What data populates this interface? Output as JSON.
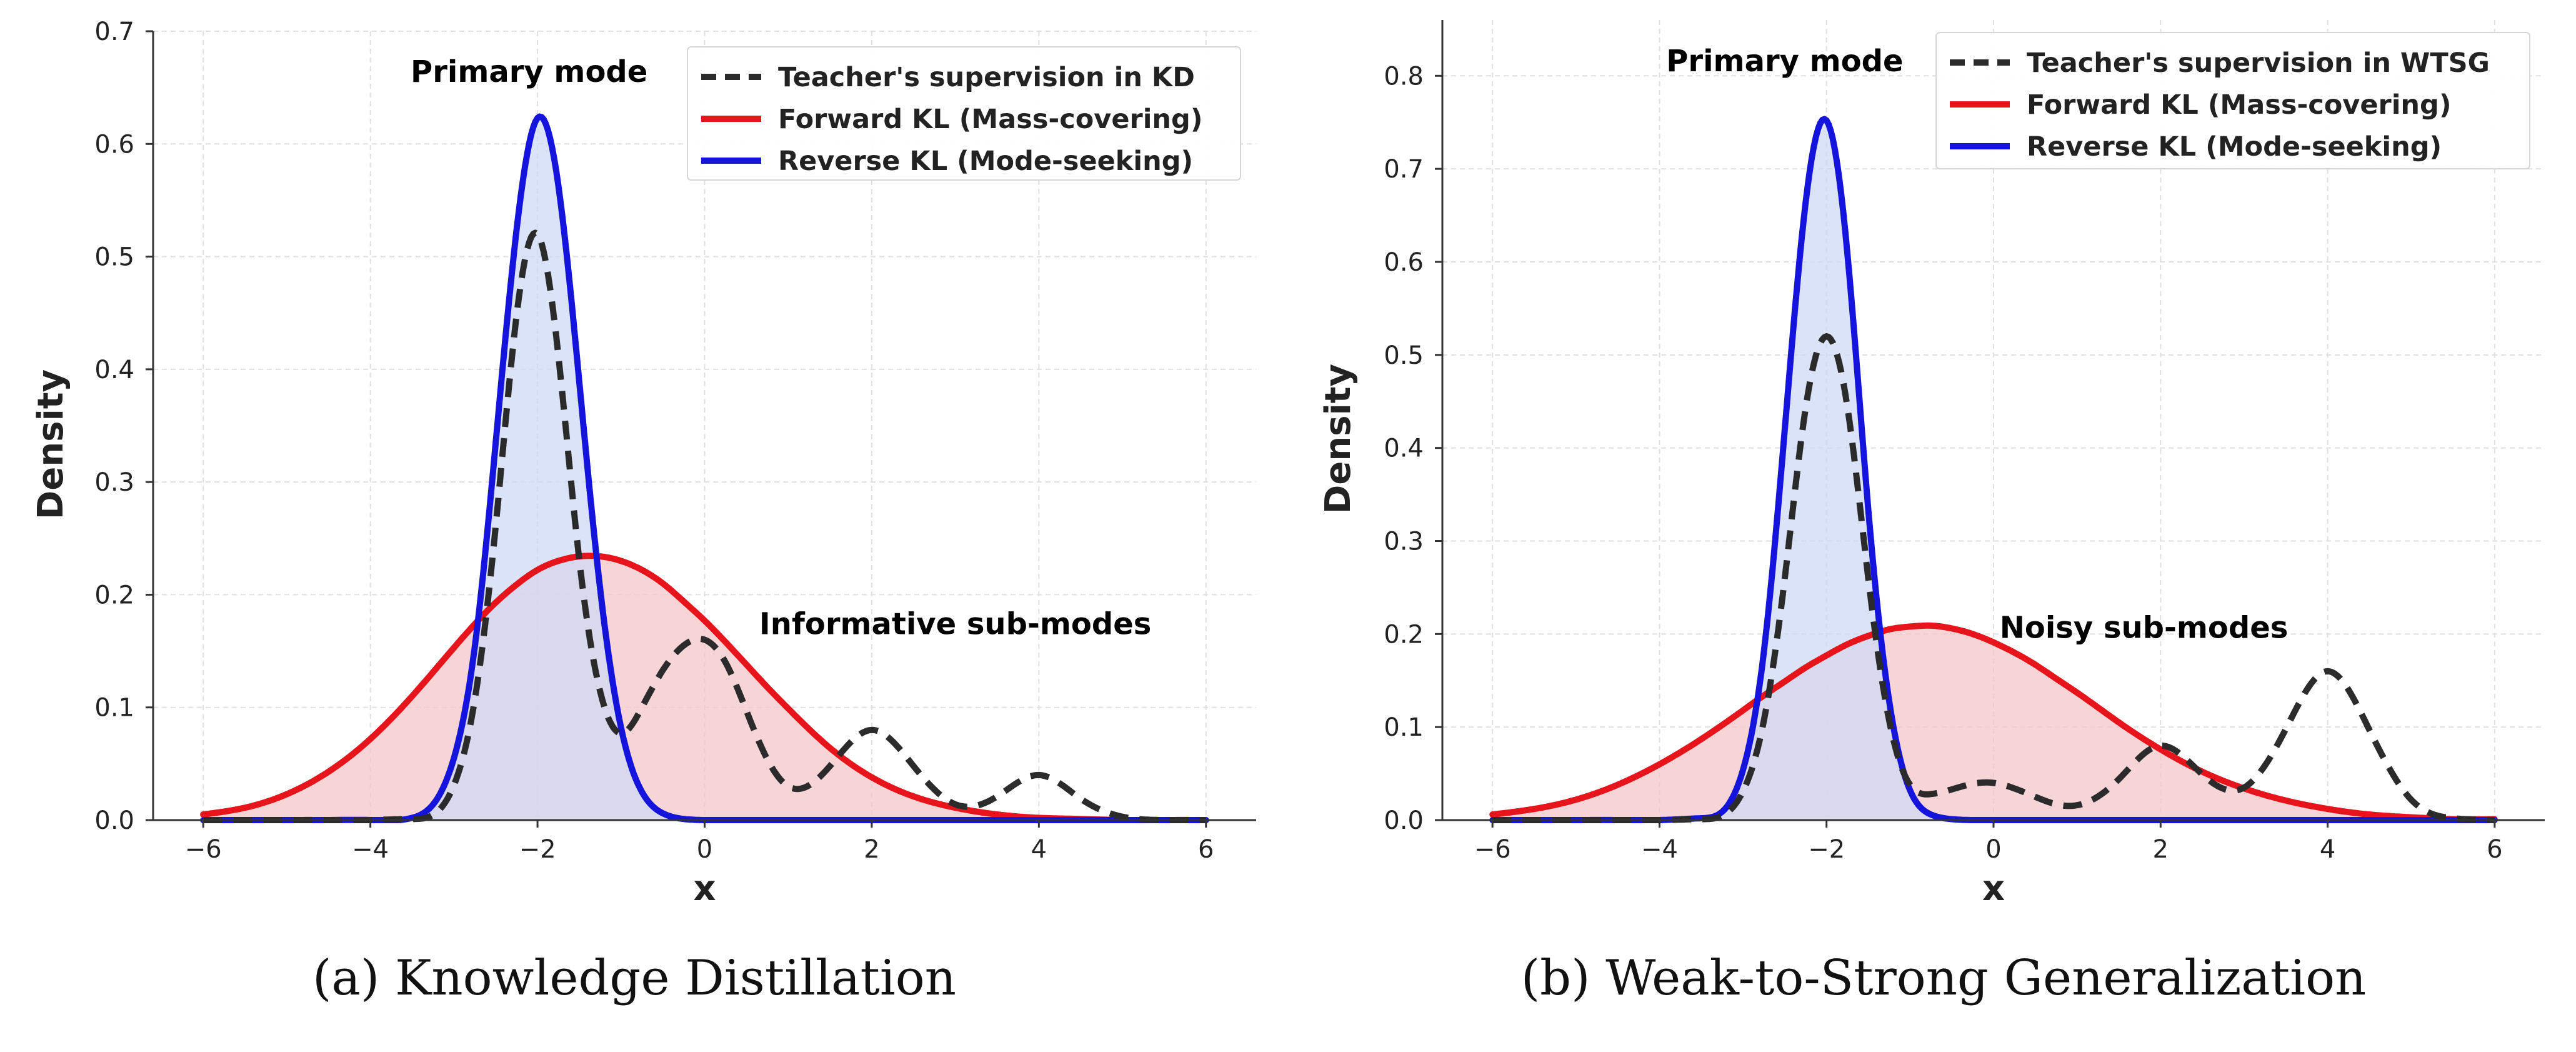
{
  "colors": {
    "teacher": "#2b2b2b",
    "forward": "#e8141c",
    "reverse": "#1414dd",
    "forward_fill": "#f4c7c9",
    "reverse_fill": "#cfd9f6",
    "grid": "#e0e0e0"
  },
  "captions": [
    "(a)  Knowledge Distillation",
    "(b)  Weak-to-Strong Generalization"
  ],
  "chart_data": [
    {
      "type": "line",
      "title": "",
      "xlabel": "x",
      "ylabel": "Density",
      "xlim": [
        -6.6,
        6.6
      ],
      "ylim": [
        0,
        0.7
      ],
      "xticks": [
        -6,
        -4,
        -2,
        0,
        2,
        4,
        6
      ],
      "xtick_labels": [
        "−6",
        "−4",
        "−2",
        "0",
        "2",
        "4",
        "6"
      ],
      "yticks": [
        0.0,
        0.1,
        0.2,
        0.3,
        0.4,
        0.5,
        0.6,
        0.7
      ],
      "ytick_labels": [
        "0.0",
        "0.1",
        "0.2",
        "0.3",
        "0.4",
        "0.5",
        "0.6",
        "0.7"
      ],
      "grid": true,
      "legend_position": "top-right",
      "x": [
        -6.0,
        -5.5,
        -5.0,
        -4.5,
        -4.0,
        -3.5,
        -3.0,
        -2.75,
        -2.5,
        -2.25,
        -2.0,
        -1.75,
        -1.5,
        -1.25,
        -1.0,
        -0.75,
        -0.5,
        -0.25,
        0.0,
        0.25,
        0.5,
        0.75,
        1.0,
        1.5,
        2.0,
        2.5,
        3.0,
        3.5,
        4.0,
        4.5,
        5.0,
        5.5,
        6.0
      ],
      "series": [
        {
          "name": "Teacher's supervision in KD",
          "style": "dashed",
          "values": [
            0.0,
            0.0,
            0.0,
            0.0,
            0.0,
            0.001,
            0.031,
            0.107,
            0.261,
            0.448,
            0.52,
            0.412,
            0.231,
            0.114,
            0.077,
            0.1,
            0.133,
            0.155,
            0.16,
            0.14,
            0.097,
            0.054,
            0.03,
            0.048,
            0.08,
            0.048,
            0.014,
            0.021,
            0.04,
            0.019,
            0.003,
            0.0,
            0.0
          ]
        },
        {
          "name": "Forward KL (Mass-covering)",
          "style": "solid",
          "fill": true,
          "values": [
            0.005,
            0.011,
            0.023,
            0.043,
            0.072,
            0.11,
            0.153,
            0.174,
            0.193,
            0.209,
            0.222,
            0.23,
            0.234,
            0.234,
            0.23,
            0.222,
            0.21,
            0.194,
            0.177,
            0.158,
            0.138,
            0.118,
            0.099,
            0.064,
            0.038,
            0.021,
            0.011,
            0.005,
            0.002,
            0.001,
            0.0,
            0.0,
            0.0
          ]
        },
        {
          "name": "Reverse KL (Mode-seeking)",
          "style": "solid",
          "fill": true,
          "values": [
            0.0,
            0.0,
            0.0,
            0.0,
            0.0,
            0.002,
            0.055,
            0.154,
            0.335,
            0.524,
            0.623,
            0.563,
            0.389,
            0.205,
            0.082,
            0.025,
            0.006,
            0.001,
            0.0,
            0.0,
            0.0,
            0.0,
            0.0,
            0.0,
            0.0,
            0.0,
            0.0,
            0.0,
            0.0,
            0.0,
            0.0,
            0.0,
            0.0
          ]
        }
      ],
      "annotations": [
        {
          "text": "Primary mode",
          "x": -2.1,
          "y": 0.655
        },
        {
          "text": "Informative sub-modes",
          "x": 3.0,
          "y": 0.165
        }
      ]
    },
    {
      "type": "line",
      "title": "",
      "xlabel": "x",
      "ylabel": "Density",
      "xlim": [
        -6.6,
        6.6
      ],
      "ylim": [
        0,
        0.86
      ],
      "xticks": [
        -6,
        -4,
        -2,
        0,
        2,
        4,
        6
      ],
      "xtick_labels": [
        "−6",
        "−4",
        "−2",
        "0",
        "2",
        "4",
        "6"
      ],
      "yticks": [
        0.0,
        0.1,
        0.2,
        0.3,
        0.4,
        0.5,
        0.6,
        0.7,
        0.8
      ],
      "ytick_labels": [
        "0.0",
        "0.1",
        "0.2",
        "0.3",
        "0.4",
        "0.5",
        "0.6",
        "0.7",
        "0.8"
      ],
      "grid": true,
      "legend_position": "top-right",
      "x": [
        -6.0,
        -5.5,
        -5.0,
        -4.5,
        -4.0,
        -3.5,
        -3.0,
        -2.75,
        -2.5,
        -2.25,
        -2.0,
        -1.75,
        -1.5,
        -1.25,
        -1.0,
        -0.75,
        -0.5,
        -0.25,
        0.0,
        0.25,
        0.5,
        0.75,
        1.0,
        1.5,
        2.0,
        2.5,
        3.0,
        3.5,
        4.0,
        4.5,
        5.0,
        5.5,
        6.0
      ],
      "series": [
        {
          "name": "Teacher's supervision in WTSG",
          "style": "dashed",
          "values": [
            0.0,
            0.0,
            0.0,
            0.0,
            0.0,
            0.001,
            0.031,
            0.107,
            0.26,
            0.443,
            0.52,
            0.444,
            0.26,
            0.107,
            0.038,
            0.028,
            0.033,
            0.039,
            0.04,
            0.034,
            0.025,
            0.017,
            0.016,
            0.044,
            0.08,
            0.049,
            0.035,
            0.098,
            0.16,
            0.097,
            0.022,
            0.002,
            0.0
          ]
        },
        {
          "name": "Forward KL (Mass-covering)",
          "style": "solid",
          "fill": true,
          "values": [
            0.006,
            0.012,
            0.022,
            0.038,
            0.06,
            0.087,
            0.118,
            0.134,
            0.149,
            0.164,
            0.177,
            0.189,
            0.198,
            0.205,
            0.208,
            0.209,
            0.206,
            0.2,
            0.191,
            0.18,
            0.167,
            0.152,
            0.137,
            0.105,
            0.076,
            0.052,
            0.034,
            0.021,
            0.012,
            0.006,
            0.003,
            0.001,
            0.001
          ]
        },
        {
          "name": "Reverse KL (Mode-seeking)",
          "style": "solid",
          "fill": true,
          "values": [
            0.0,
            0.0,
            0.0,
            0.0,
            0.0,
            0.002,
            0.054,
            0.181,
            0.42,
            0.664,
            0.752,
            0.609,
            0.334,
            0.128,
            0.032,
            0.006,
            0.001,
            0.0,
            0.0,
            0.0,
            0.0,
            0.0,
            0.0,
            0.0,
            0.0,
            0.0,
            0.0,
            0.0,
            0.0,
            0.0,
            0.0,
            0.0,
            0.0
          ]
        }
      ],
      "annotations": [
        {
          "text": "Primary mode",
          "x": -2.5,
          "y": 0.805
        },
        {
          "text": "Noisy sub-modes",
          "x": 1.8,
          "y": 0.196
        }
      ]
    }
  ]
}
